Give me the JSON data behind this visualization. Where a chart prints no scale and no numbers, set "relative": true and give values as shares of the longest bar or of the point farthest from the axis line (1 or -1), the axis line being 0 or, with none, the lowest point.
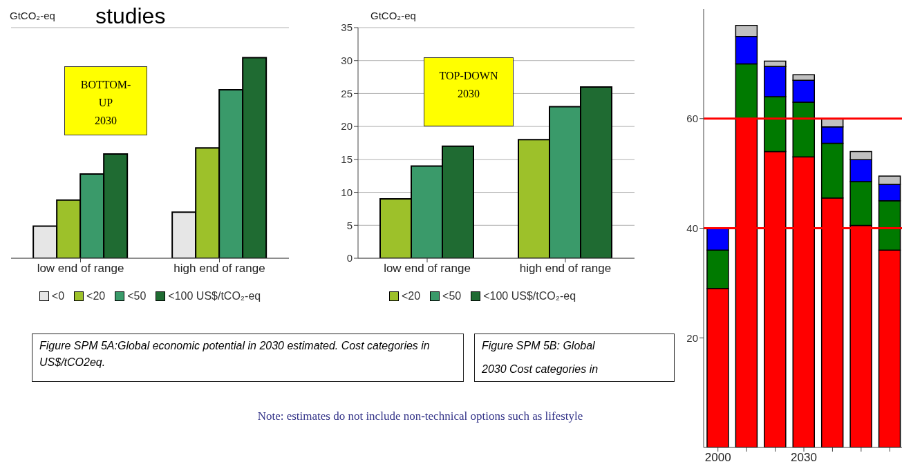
{
  "chart_data": [
    {
      "type": "bar",
      "title": "studies",
      "ylabel": "GtCO₂-eq",
      "categories": [
        "low end of range",
        "high end of range"
      ],
      "relative": true,
      "series": [
        {
          "name": "<0",
          "color": "#e6e6e6",
          "values": [
            0.16,
            0.23
          ]
        },
        {
          "name": "<20",
          "color": "#9dc12a",
          "values": [
            0.29,
            0.55
          ]
        },
        {
          "name": "<50",
          "color": "#3a9a6a",
          "values": [
            0.42,
            0.84
          ]
        },
        {
          "name": "<100 US$/tCO₂-eq",
          "color": "#1f6b32",
          "values": [
            0.52,
            1
          ]
        }
      ],
      "grid": "y",
      "legend": "bottom",
      "tick_labels": "x",
      "annotations": [
        "BOTTOM-UP 2030",
        "Figure SPM 5A:Global economic potential in 2030 estimated. Cost categories in US$/tCO2eq."
      ]
    },
    {
      "type": "bar",
      "ylabel": "GtCO₂-eq",
      "categories": [
        "low end of range",
        "high end of range"
      ],
      "series": [
        {
          "name": "<20",
          "color": "#9dc12a",
          "values": [
            9,
            18
          ]
        },
        {
          "name": "<50",
          "color": "#3a9a6a",
          "values": [
            14,
            23
          ]
        },
        {
          "name": "<100 US$/tCO₂-eq",
          "color": "#1f6b32",
          "values": [
            17,
            26
          ]
        }
      ],
      "ylim": [
        0,
        35
      ],
      "yticks": [
        0,
        5,
        10,
        15,
        20,
        25,
        30,
        35
      ],
      "grid": "y",
      "legend": "bottom",
      "annotations": [
        "TOP-DOWN 2030",
        "Figure SPM 5B: Global",
        "2030 Cost categories in",
        "Note: estimates do not include non-technical options such as lifestyle"
      ]
    },
    {
      "type": "bar",
      "stacked": true,
      "categories": [
        "2000",
        null,
        null,
        "2030",
        null,
        null,
        null
      ],
      "series": [
        {
          "color": "#ff0000",
          "values": [
            29,
            60,
            54,
            53,
            45.5,
            40.5,
            36
          ]
        },
        {
          "color": "#007a00",
          "values": [
            7,
            10,
            10,
            10,
            10,
            8,
            9
          ]
        },
        {
          "color": "#0000ff",
          "values": [
            4,
            5,
            5.5,
            4,
            3,
            4,
            3
          ]
        },
        {
          "color": "#c0c0c0",
          "values": [
            null,
            2,
            1,
            1,
            1.5,
            1.5,
            1.5
          ]
        }
      ],
      "ylim": [
        0,
        80
      ],
      "yticks": [
        20,
        40,
        60
      ],
      "ref_lines": [
        {
          "axis": "y",
          "value": 40,
          "color": "#ff0000"
        },
        {
          "axis": "y",
          "value": 60,
          "color": "#ff0000"
        }
      ]
    }
  ]
}
